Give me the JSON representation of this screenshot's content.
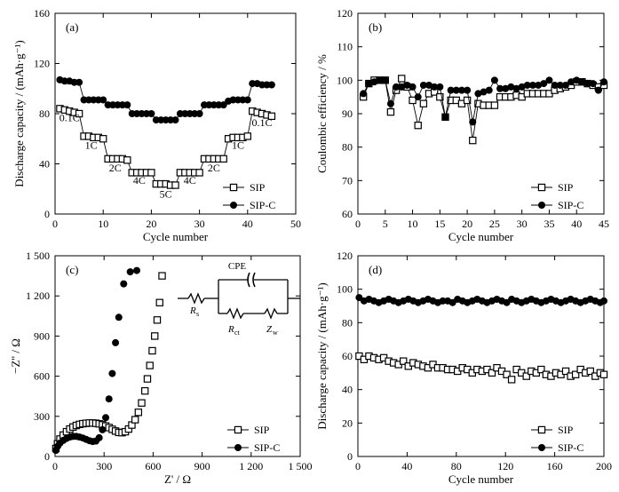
{
  "chart_data": [
    {
      "type": "scatter",
      "panel_label": "(a)",
      "xlabel": "Cycle number",
      "ylabel": "Discharge capacity / (mAh·g⁻¹)",
      "xlim": [
        0,
        50
      ],
      "ylim": [
        0,
        160
      ],
      "xticks": [
        0,
        10,
        20,
        30,
        40,
        50
      ],
      "yticks": [
        0,
        40,
        80,
        120,
        160
      ],
      "legend_position": "bottom-right",
      "annotations": [
        {
          "text": "0.1C",
          "x": 3,
          "y": 74
        },
        {
          "text": "1C",
          "x": 7.5,
          "y": 52
        },
        {
          "text": "2C",
          "x": 12.5,
          "y": 34
        },
        {
          "text": "4C",
          "x": 17.5,
          "y": 24
        },
        {
          "text": "5C",
          "x": 23,
          "y": 13
        },
        {
          "text": "4C",
          "x": 28,
          "y": 24
        },
        {
          "text": "2C",
          "x": 33,
          "y": 34
        },
        {
          "text": "1C",
          "x": 38,
          "y": 52
        },
        {
          "text": "0.1C",
          "x": 43,
          "y": 70
        }
      ],
      "series": [
        {
          "name": "SIP",
          "marker": "open-square",
          "x": [
            1,
            2,
            3,
            4,
            5,
            6,
            7,
            8,
            9,
            10,
            11,
            12,
            13,
            14,
            15,
            16,
            17,
            18,
            19,
            20,
            21,
            22,
            23,
            24,
            25,
            26,
            27,
            28,
            29,
            30,
            31,
            32,
            33,
            34,
            35,
            36,
            37,
            38,
            39,
            40,
            41,
            42,
            43,
            44,
            45
          ],
          "y": [
            84,
            83,
            82,
            81,
            80,
            62,
            62,
            61,
            61,
            60,
            44,
            44,
            44,
            44,
            43,
            33,
            33,
            33,
            33,
            33,
            24,
            24,
            24,
            23,
            23,
            33,
            33,
            33,
            33,
            33,
            44,
            44,
            44,
            44,
            44,
            60,
            61,
            61,
            61,
            62,
            82,
            81,
            80,
            79,
            78
          ]
        },
        {
          "name": "SIP-C",
          "marker": "filled-circle",
          "x": [
            1,
            2,
            3,
            4,
            5,
            6,
            7,
            8,
            9,
            10,
            11,
            12,
            13,
            14,
            15,
            16,
            17,
            18,
            19,
            20,
            21,
            22,
            23,
            24,
            25,
            26,
            27,
            28,
            29,
            30,
            31,
            32,
            33,
            34,
            35,
            36,
            37,
            38,
            39,
            40,
            41,
            42,
            43,
            44,
            45
          ],
          "y": [
            107,
            106,
            106,
            105,
            105,
            91,
            91,
            91,
            91,
            91,
            87,
            87,
            87,
            87,
            87,
            80,
            80,
            80,
            80,
            80,
            75,
            75,
            75,
            75,
            75,
            80,
            80,
            80,
            80,
            80,
            87,
            87,
            87,
            87,
            87,
            90,
            91,
            91,
            91,
            91,
            104,
            104,
            103,
            103,
            103
          ]
        }
      ]
    },
    {
      "type": "scatter",
      "panel_label": "(b)",
      "xlabel": "Cycle number",
      "ylabel": "Coulombic efficiency / %",
      "xlim": [
        0,
        45
      ],
      "ylim": [
        60,
        120
      ],
      "xticks": [
        0,
        5,
        10,
        15,
        20,
        25,
        30,
        35,
        40,
        45
      ],
      "yticks": [
        60,
        70,
        80,
        90,
        100,
        110,
        120
      ],
      "legend_position": "bottom-right",
      "series": [
        {
          "name": "SIP",
          "marker": "open-square",
          "x": [
            1,
            2,
            3,
            4,
            5,
            6,
            7,
            8,
            9,
            10,
            11,
            12,
            13,
            14,
            15,
            16,
            17,
            18,
            19,
            20,
            21,
            22,
            23,
            24,
            25,
            26,
            27,
            28,
            29,
            30,
            31,
            32,
            33,
            34,
            35,
            36,
            37,
            38,
            39,
            40,
            41,
            42,
            43,
            44,
            45
          ],
          "y": [
            95,
            99,
            100,
            100,
            100,
            90.5,
            97,
            100.5,
            98,
            94,
            86.5,
            93,
            96,
            96.5,
            95,
            89,
            94,
            94,
            93,
            94,
            82,
            93,
            92.5,
            92.5,
            92.5,
            95,
            95,
            95,
            95.5,
            95,
            96,
            96,
            96,
            96,
            96,
            97,
            97.5,
            98,
            98.5,
            99.5,
            99.5,
            99,
            98.5,
            98,
            98.5
          ]
        },
        {
          "name": "SIP-C",
          "marker": "filled-circle",
          "x": [
            1,
            2,
            3,
            4,
            5,
            6,
            7,
            8,
            9,
            10,
            11,
            12,
            13,
            14,
            15,
            16,
            17,
            18,
            19,
            20,
            21,
            22,
            23,
            24,
            25,
            26,
            27,
            28,
            29,
            30,
            31,
            32,
            33,
            34,
            35,
            36,
            37,
            38,
            39,
            40,
            41,
            42,
            43,
            44,
            45
          ],
          "y": [
            96,
            99,
            99.5,
            100,
            100,
            93,
            98,
            98,
            98.5,
            98,
            95,
            98.5,
            98.5,
            98,
            98,
            89,
            97,
            97,
            97,
            97,
            87.5,
            96,
            96.5,
            97,
            100,
            97.5,
            97.5,
            98,
            97.5,
            98,
            98.5,
            98.5,
            98.5,
            99,
            100,
            98.5,
            98.5,
            98.5,
            99.5,
            100,
            99.5,
            99,
            99,
            97,
            99.5
          ]
        }
      ]
    },
    {
      "type": "scatter",
      "panel_label": "(c)",
      "xlabel": "Z' / Ω",
      "ylabel": "−Z'' / Ω",
      "xlim": [
        0,
        1500
      ],
      "ylim": [
        0,
        1500
      ],
      "xticks": [
        0,
        300,
        600,
        900,
        1200,
        1500
      ],
      "xtick_labels": [
        "0",
        "300",
        "600",
        "900",
        "1 200",
        "1 500"
      ],
      "yticks": [
        0,
        300,
        600,
        900,
        1200,
        1500
      ],
      "ytick_labels": [
        "0",
        "300",
        "600",
        "900",
        "1 200",
        "1 500"
      ],
      "legend_position": "bottom-right",
      "inset_circuit_labels": [
        "CPE",
        "R",
        "s",
        "R",
        "ct",
        "Z",
        "w"
      ],
      "series": [
        {
          "name": "SIP",
          "marker": "open-square",
          "x": [
            5,
            15,
            30,
            50,
            70,
            90,
            110,
            130,
            150,
            170,
            190,
            210,
            230,
            250,
            270,
            290,
            310,
            330,
            350,
            370,
            390,
            410,
            430,
            450,
            470,
            490,
            510,
            530,
            550,
            565,
            580,
            595,
            610,
            625,
            640,
            655
          ],
          "y": [
            60,
            95,
            130,
            160,
            185,
            205,
            220,
            232,
            240,
            245,
            248,
            250,
            250,
            248,
            244,
            237,
            228,
            216,
            203,
            190,
            180,
            178,
            185,
            205,
            235,
            275,
            330,
            400,
            490,
            580,
            680,
            790,
            900,
            1020,
            1150,
            1350
          ]
        },
        {
          "name": "SIP-C",
          "marker": "filled-circle",
          "x": [
            5,
            15,
            30,
            50,
            70,
            90,
            110,
            130,
            150,
            170,
            190,
            210,
            230,
            250,
            270,
            290,
            310,
            330,
            350,
            370,
            390,
            420,
            460,
            500
          ],
          "y": [
            45,
            75,
            100,
            120,
            135,
            145,
            150,
            150,
            145,
            138,
            128,
            118,
            112,
            115,
            140,
            200,
            290,
            430,
            620,
            850,
            1040,
            1290,
            1380,
            1390
          ]
        }
      ]
    },
    {
      "type": "scatter",
      "panel_label": "(d)",
      "xlabel": "Cycle number",
      "ylabel": "Discharge capacity / (mAh·g⁻¹)",
      "xlim": [
        0,
        200
      ],
      "ylim": [
        0,
        120
      ],
      "xticks": [
        0,
        40,
        80,
        120,
        160,
        200
      ],
      "yticks": [
        0,
        20,
        40,
        60,
        80,
        100,
        120
      ],
      "legend_position": "bottom-right",
      "series": [
        {
          "name": "SIP",
          "marker": "open-square",
          "x": [
            1,
            5,
            9,
            13,
            17,
            21,
            25,
            29,
            33,
            37,
            41,
            45,
            49,
            53,
            57,
            61,
            65,
            69,
            73,
            77,
            81,
            85,
            89,
            93,
            97,
            101,
            105,
            109,
            113,
            117,
            121,
            125,
            129,
            133,
            137,
            141,
            145,
            149,
            153,
            157,
            161,
            165,
            169,
            173,
            177,
            181,
            185,
            189,
            193,
            197,
            200
          ],
          "y": [
            60,
            58,
            60,
            59,
            58,
            59,
            57,
            56,
            55,
            57,
            54,
            56,
            55,
            54,
            53,
            55,
            53,
            53,
            52,
            52,
            51,
            53,
            52,
            50,
            52,
            51,
            52,
            50,
            53,
            51,
            49,
            46,
            52,
            50,
            48,
            51,
            50,
            52,
            49,
            48,
            50,
            49,
            51,
            48,
            49,
            52,
            50,
            51,
            48,
            50,
            49
          ]
        },
        {
          "name": "SIP-C",
          "marker": "filled-circle",
          "x": [
            1,
            5,
            9,
            13,
            17,
            21,
            25,
            29,
            33,
            37,
            41,
            45,
            49,
            53,
            57,
            61,
            65,
            69,
            73,
            77,
            81,
            85,
            89,
            93,
            97,
            101,
            105,
            109,
            113,
            117,
            121,
            125,
            129,
            133,
            137,
            141,
            145,
            149,
            153,
            157,
            161,
            165,
            169,
            173,
            177,
            181,
            185,
            189,
            193,
            197,
            200
          ],
          "y": [
            95,
            93,
            94,
            93,
            92,
            93,
            94,
            93,
            92,
            93,
            94,
            93,
            92,
            93,
            94,
            93,
            92,
            93,
            93,
            92,
            94,
            93,
            92,
            93,
            94,
            93,
            92,
            93,
            94,
            93,
            92,
            94,
            93,
            92,
            93,
            94,
            93,
            92,
            93,
            94,
            93,
            92,
            93,
            94,
            93,
            92,
            93,
            94,
            93,
            92,
            93
          ]
        }
      ]
    }
  ]
}
